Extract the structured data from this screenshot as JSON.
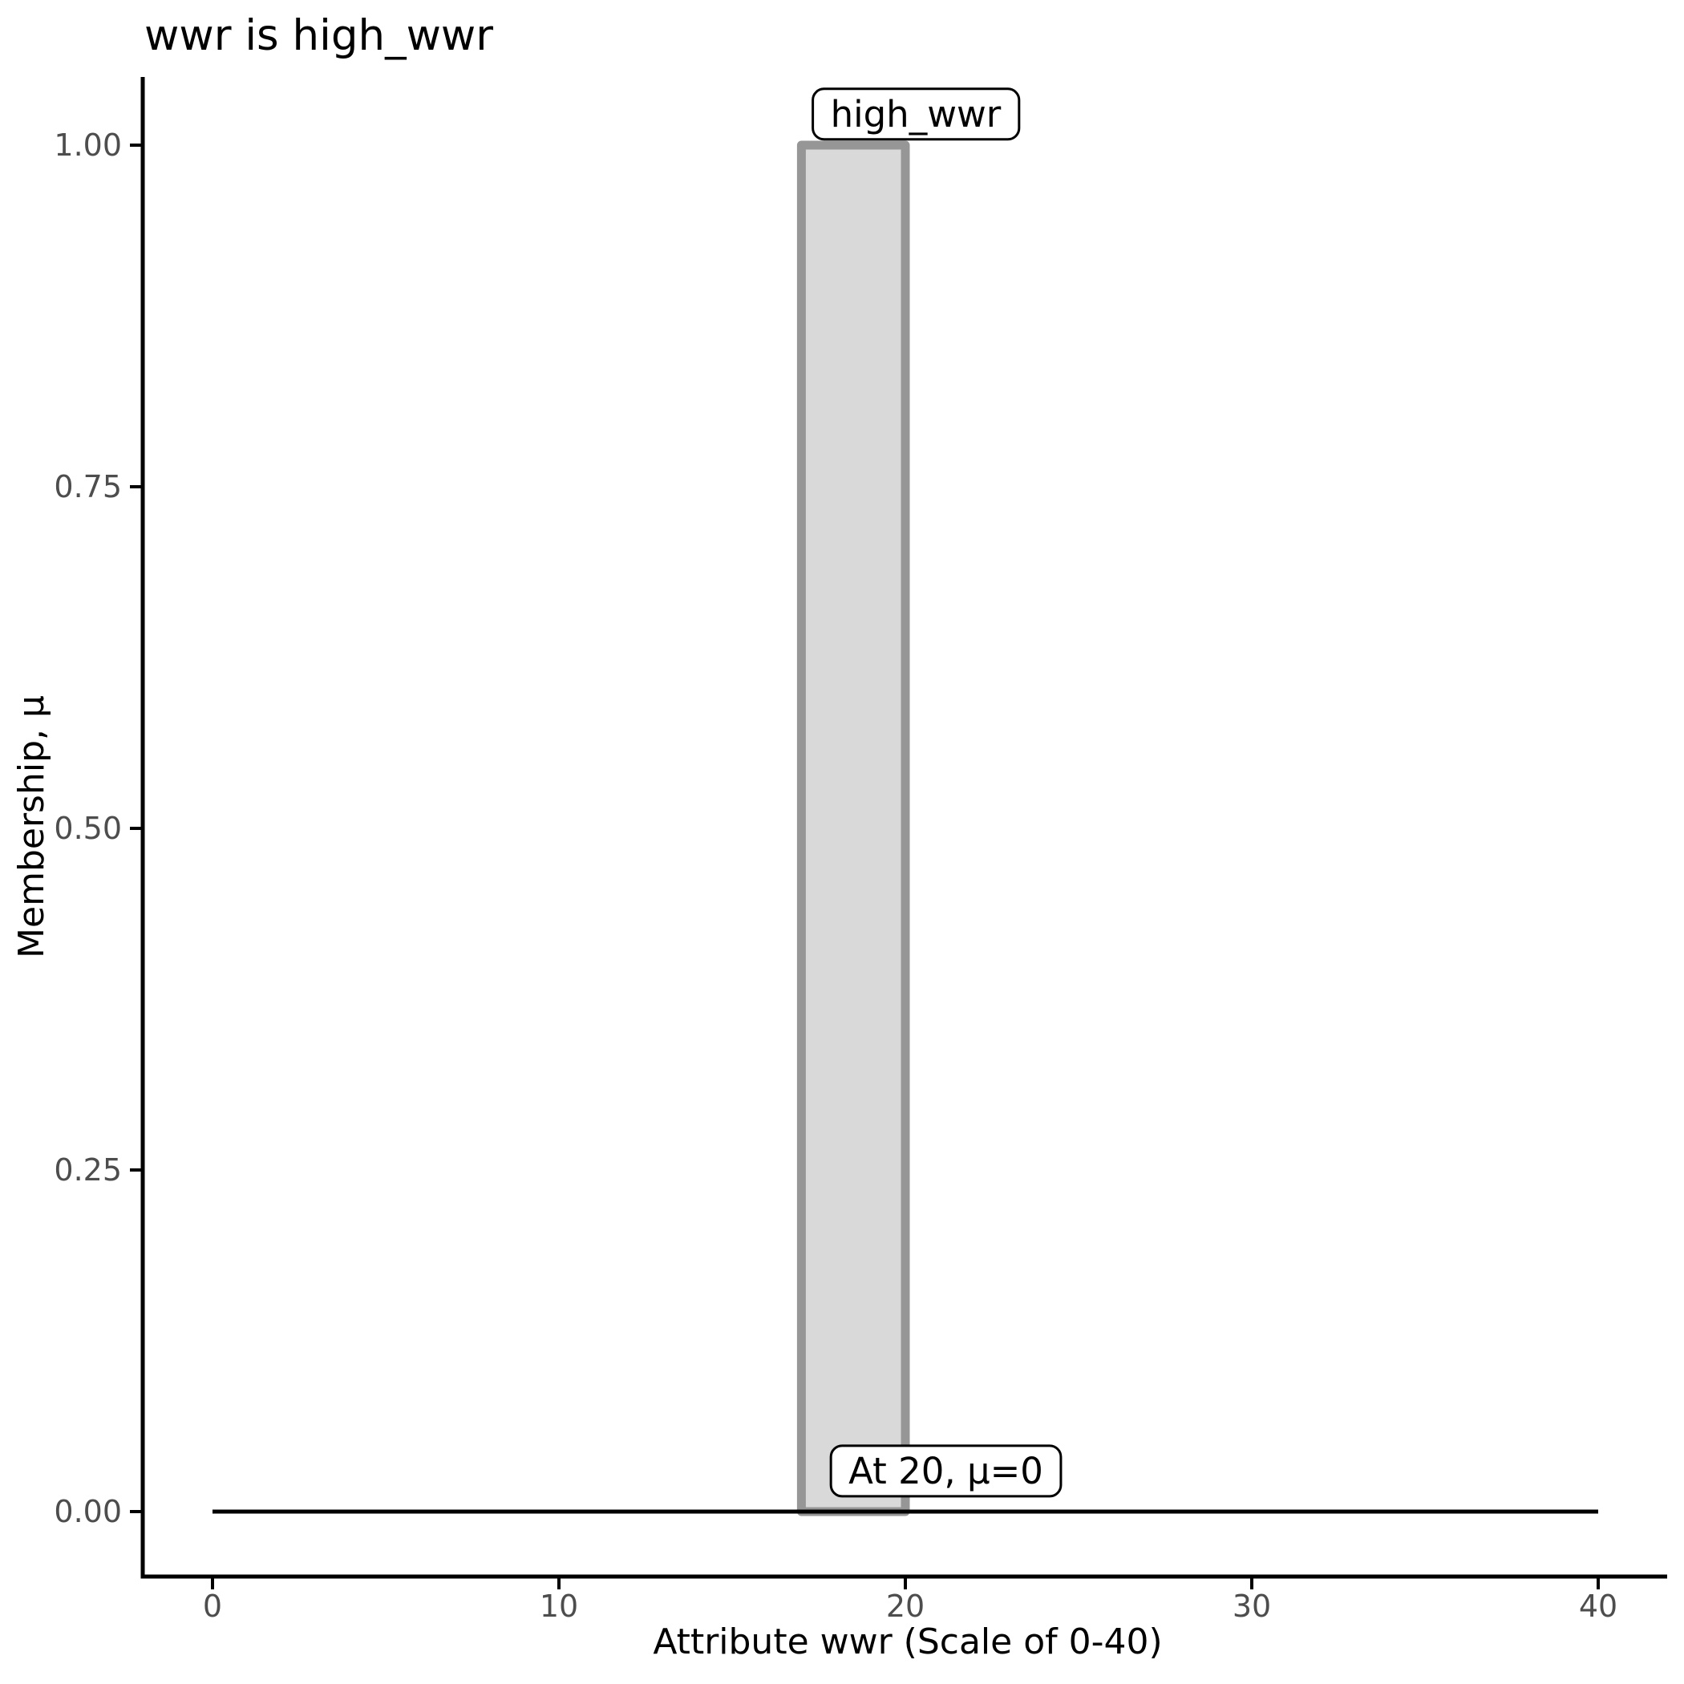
{
  "chart_data": {
    "type": "area",
    "title": "wwr is high_wwr",
    "xlabel": "Attribute wwr (Scale of 0-40)",
    "ylabel": "Membership, μ",
    "xlim": [
      0,
      40
    ],
    "ylim": [
      0,
      1
    ],
    "grid": false,
    "legend": "none",
    "x_ticks": [
      0,
      10,
      20,
      30,
      40
    ],
    "y_ticks": [
      0,
      0.25,
      0.5,
      0.75,
      1
    ],
    "y_tick_labels": [
      "0.00",
      "0.25",
      "0.50",
      "0.75",
      "1.00"
    ],
    "series": [
      {
        "name": "high_wwr",
        "kind": "polygon",
        "points": [
          [
            17,
            0
          ],
          [
            17,
            1
          ],
          [
            20,
            1
          ],
          [
            20,
            0
          ]
        ],
        "fill": "#d9d9d9",
        "stroke": "#969696",
        "stroke_width": 11
      },
      {
        "name": "zero-membership-baseline",
        "kind": "line",
        "points": [
          [
            0,
            0
          ],
          [
            40,
            0
          ]
        ],
        "stroke": "#000000",
        "stroke_width": 5
      }
    ],
    "annotations": [
      {
        "text": "high_wwr",
        "x": 20.3,
        "y": 1.023,
        "style": "label-box"
      },
      {
        "text": "At 20, μ=0",
        "x": 21.17,
        "y": 0.03,
        "style": "label-box"
      }
    ],
    "annotation_box": {
      "fill": "#ffffff",
      "stroke": "#000000",
      "stroke_width": 3,
      "radius": 14
    },
    "colors": {
      "axis": "#000000",
      "tick_text": "#4d4d4d",
      "title_text": "#000000"
    }
  }
}
